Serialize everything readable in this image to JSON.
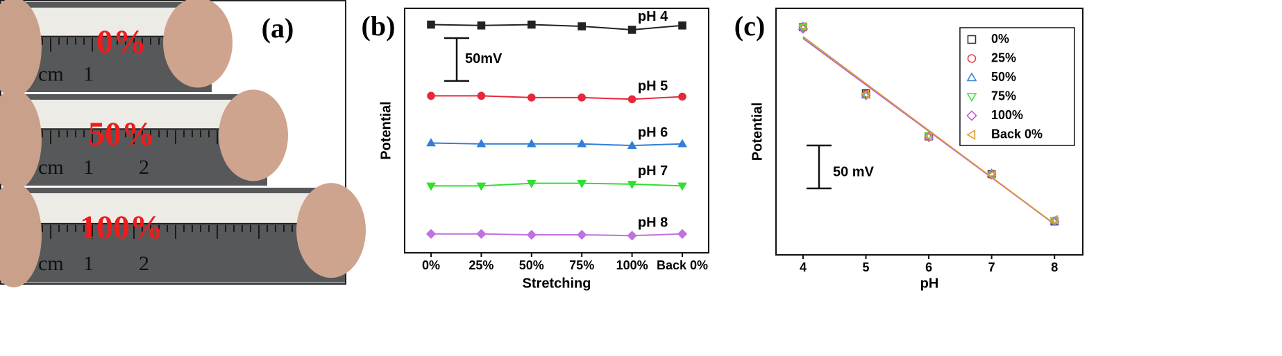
{
  "panel_a": {
    "tag": "(a)",
    "photos": [
      {
        "label": "0%",
        "ruler": [
          "cm",
          "1"
        ]
      },
      {
        "label": "50%",
        "ruler": [
          "cm",
          "1",
          "2"
        ]
      },
      {
        "label": "100%",
        "ruler": [
          "cm",
          "1",
          "2"
        ]
      }
    ]
  },
  "chart_data": [
    {
      "type": "line",
      "tag": "(b)",
      "x_label": "Stretching",
      "y_label": "Potential",
      "categories": [
        "0%",
        "25%",
        "50%",
        "75%",
        "100%",
        "Back 0%"
      ],
      "ylim": [
        0,
        285
      ],
      "scale_bar": {
        "value": 50,
        "label": "50mV"
      },
      "series": [
        {
          "name": "pH 4",
          "color": "#222222",
          "marker": "square",
          "values": [
            266,
            265,
            266,
            264,
            260,
            265
          ]
        },
        {
          "name": "pH 5",
          "color": "#e8283a",
          "marker": "circle",
          "values": [
            183,
            183,
            181,
            181,
            179,
            182
          ]
        },
        {
          "name": "pH 6",
          "color": "#2f7fd6",
          "marker": "triangle",
          "values": [
            128,
            127,
            127,
            127,
            125,
            127
          ]
        },
        {
          "name": "pH 7",
          "color": "#2fe02f",
          "marker": "down-triangle",
          "values": [
            78,
            78,
            81,
            81,
            80,
            78
          ]
        },
        {
          "name": "pH 8",
          "color": "#c070e0",
          "marker": "diamond",
          "values": [
            22,
            22,
            21,
            21,
            20,
            22
          ]
        }
      ]
    },
    {
      "type": "scatter",
      "tag": "(c)",
      "x_label": "pH",
      "y_label": "Potential",
      "x": [
        4,
        5,
        6,
        7,
        8
      ],
      "xlim": [
        3.57,
        8.45
      ],
      "xticks": [
        4,
        5,
        6,
        7,
        8
      ],
      "ylim": [
        0,
        287
      ],
      "scale_bar": {
        "value": 50,
        "label": "50 mV"
      },
      "legend": "upper right",
      "fit_lines": true,
      "series": [
        {
          "name": "0%",
          "color": "#333333",
          "marker": "square",
          "values": [
            265,
            188,
            138,
            94,
            39
          ]
        },
        {
          "name": "25%",
          "color": "#e8404f",
          "marker": "circle",
          "values": [
            264,
            187,
            137,
            93,
            40
          ]
        },
        {
          "name": "50%",
          "color": "#3a8ad8",
          "marker": "triangle",
          "values": [
            266,
            186,
            138,
            95,
            39
          ]
        },
        {
          "name": "75%",
          "color": "#3de63d",
          "marker": "down-triangle",
          "values": [
            265,
            185,
            139,
            93,
            40
          ]
        },
        {
          "name": "100%",
          "color": "#c060d0",
          "marker": "diamond",
          "values": [
            263,
            186,
            137,
            94,
            39
          ]
        },
        {
          "name": "Back 0%",
          "color": "#e0a030",
          "marker": "left-triangle",
          "values": [
            266,
            187,
            138,
            93,
            41
          ]
        }
      ]
    }
  ]
}
